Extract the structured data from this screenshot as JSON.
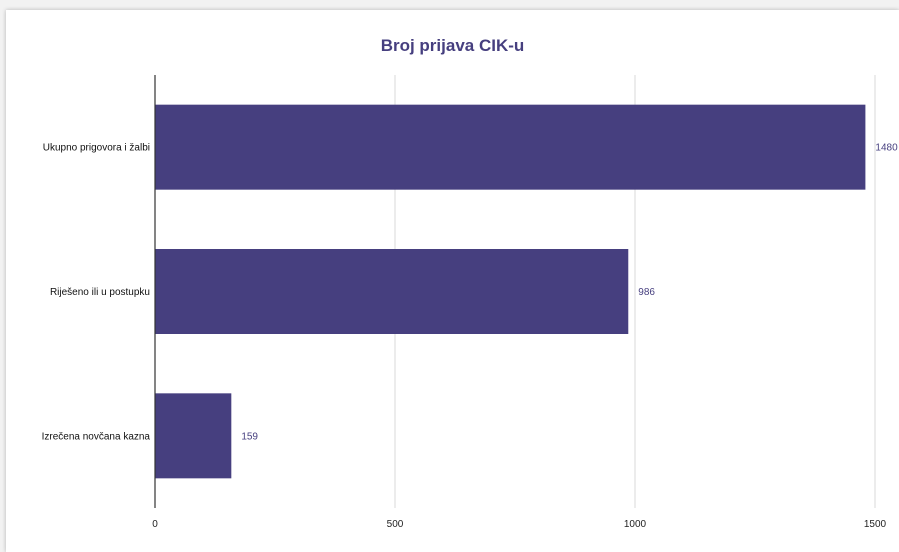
{
  "chart_data": {
    "type": "bar",
    "orientation": "horizontal",
    "title": "Broj prijava CIK-u",
    "xlabel": "",
    "ylabel": "",
    "categories": [
      "Ukupno prigovora i žalbi",
      "Riješeno ili u postupku",
      "Izrečena novčana kazna"
    ],
    "values": [
      1480,
      986,
      159
    ],
    "data_labels": [
      "1480",
      "986",
      "159"
    ],
    "xlim": [
      0,
      1500
    ],
    "x_ticks": [
      0,
      500,
      1000,
      1500
    ],
    "x_tick_labels": [
      "0",
      "500",
      "1000",
      "1500"
    ],
    "grid": true,
    "legend": "none",
    "colors": {
      "bar": "#463f7f",
      "title": "#463f7f",
      "data_label": "#463f7f",
      "gridline": "#d9d9d9",
      "axis": "#333333"
    }
  }
}
